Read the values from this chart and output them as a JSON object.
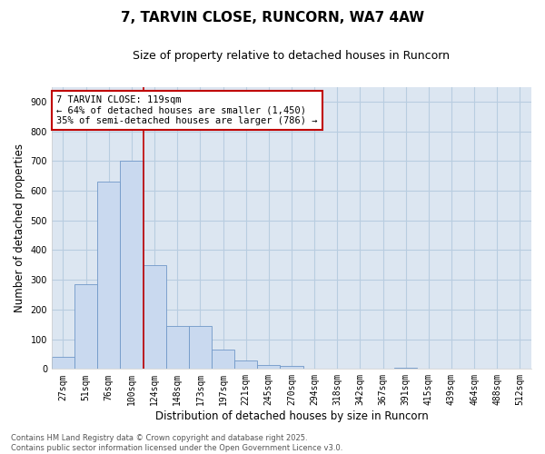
{
  "title": "7, TARVIN CLOSE, RUNCORN, WA7 4AW",
  "subtitle": "Size of property relative to detached houses in Runcorn",
  "xlabel": "Distribution of detached houses by size in Runcorn",
  "ylabel": "Number of detached properties",
  "bar_labels": [
    "27sqm",
    "51sqm",
    "76sqm",
    "100sqm",
    "124sqm",
    "148sqm",
    "173sqm",
    "197sqm",
    "221sqm",
    "245sqm",
    "270sqm",
    "294sqm",
    "318sqm",
    "342sqm",
    "367sqm",
    "391sqm",
    "415sqm",
    "439sqm",
    "464sqm",
    "488sqm",
    "512sqm"
  ],
  "bar_values": [
    40,
    285,
    630,
    700,
    350,
    145,
    145,
    65,
    30,
    12,
    10,
    0,
    0,
    0,
    0,
    5,
    0,
    0,
    0,
    0,
    0
  ],
  "bar_color": "#c9d9ef",
  "bar_edgecolor": "#7098c8",
  "grid_color": "#b8cde0",
  "background_color": "#dce6f1",
  "ylim": [
    0,
    950
  ],
  "yticks": [
    0,
    100,
    200,
    300,
    400,
    500,
    600,
    700,
    800,
    900
  ],
  "vline_x": 3.5,
  "vline_color": "#c00000",
  "annotation_title": "7 TARVIN CLOSE: 119sqm",
  "annotation_line1": "← 64% of detached houses are smaller (1,450)",
  "annotation_line2": "35% of semi-detached houses are larger (786) →",
  "annotation_box_edgecolor": "#c00000",
  "footer_line1": "Contains HM Land Registry data © Crown copyright and database right 2025.",
  "footer_line2": "Contains public sector information licensed under the Open Government Licence v3.0.",
  "title_fontsize": 11,
  "subtitle_fontsize": 9,
  "axis_label_fontsize": 8.5,
  "tick_fontsize": 7,
  "annotation_fontsize": 7.5,
  "footer_fontsize": 6
}
